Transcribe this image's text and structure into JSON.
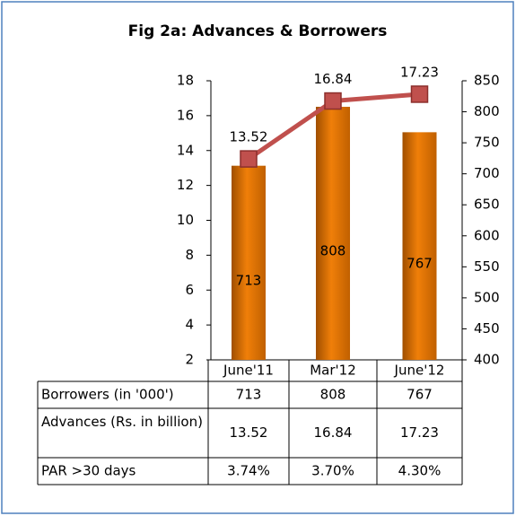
{
  "chart_data": {
    "type": "bar_line",
    "title": "Fig 2a: Advances & Borrowers",
    "categories": [
      "June'11",
      "Mar'12",
      "June'12"
    ],
    "series": [
      {
        "name": "Borrowers (in '000')",
        "color": "#f07f09",
        "axis": "y2",
        "type": "bar",
        "values": [
          713,
          808,
          767
        ]
      },
      {
        "name": "Advances (Rs. in billion)",
        "color": "#c0504d",
        "axis": "y",
        "type": "line",
        "values": [
          13.52,
          16.84,
          17.23
        ]
      }
    ],
    "table_rows": [
      {
        "name": "PAR >30 days",
        "values": [
          3.74,
          3.7,
          4.3
        ],
        "value_labels": [
          "3.74%",
          "3.70%",
          "4.30%"
        ]
      }
    ],
    "ylim": [
      2,
      18
    ],
    "yticks": [
      2,
      4,
      6,
      8,
      10,
      12,
      14,
      16,
      18
    ],
    "y2lim": [
      400,
      850
    ],
    "y2ticks": [
      400,
      450,
      500,
      550,
      600,
      650,
      700,
      750,
      800,
      850
    ],
    "grid": false
  }
}
